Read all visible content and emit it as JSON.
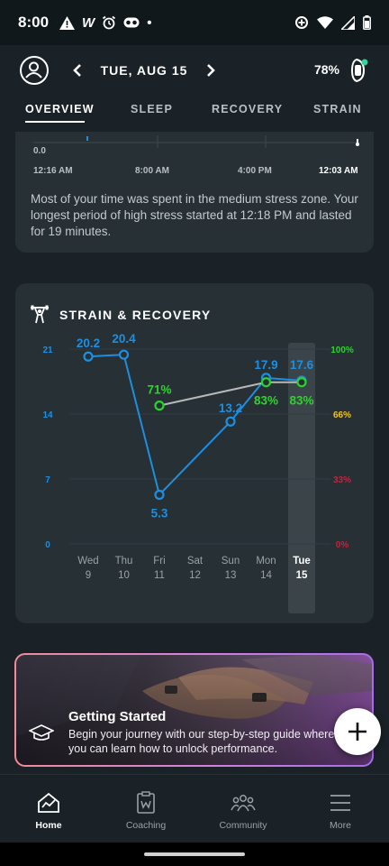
{
  "status_bar": {
    "time": "8:00",
    "left_glyph": "W",
    "dot": "•"
  },
  "header": {
    "date": "TUE, AUG 15",
    "battery_percent": "78%",
    "battery_dot_color": "#34d399"
  },
  "tabs": [
    {
      "label": "OVERVIEW",
      "active": true
    },
    {
      "label": "SLEEP",
      "active": false
    },
    {
      "label": "RECOVERY",
      "active": false
    },
    {
      "label": "STRAIN",
      "active": false
    }
  ],
  "stress_card": {
    "zero_label": "0.0",
    "time_labels": [
      "12:16 AM",
      "8:00 AM",
      "4:00 PM",
      "12:03 AM"
    ],
    "summary": "Most of your time was spent in the medium stress zone. Your longest period of high stress started at 12:18 PM and lasted for 19 minutes."
  },
  "strain_recovery": {
    "title": "STRAIN & RECOVERY",
    "colors": {
      "strain": "#1e8fe0",
      "recovery": "#2dd32d",
      "recovery_line": "#b8b8b8",
      "pct_100": "#2dd32d",
      "pct_66": "#f5c518",
      "pct_33": "#cf1f3a",
      "pct_0": "#cf1f3a"
    }
  },
  "chart_data": {
    "type": "line",
    "categories": [
      "Wed 9",
      "Thu 10",
      "Fri 11",
      "Sat 12",
      "Sun 13",
      "Mon 14",
      "Tue 15"
    ],
    "day_names": [
      "Wed",
      "Thu",
      "Fri",
      "Sat",
      "Sun",
      "Mon",
      "Tue"
    ],
    "day_numbers": [
      "9",
      "10",
      "11",
      "12",
      "13",
      "14",
      "15"
    ],
    "highlight_index": 6,
    "left_axis": {
      "ticks": [
        21,
        14,
        7,
        0
      ],
      "ylim": [
        0,
        21
      ]
    },
    "right_axis": {
      "ticks": [
        "100%",
        "66%",
        "33%",
        "0%"
      ],
      "ylim": [
        0,
        100
      ]
    },
    "series": [
      {
        "values": [
          20.2,
          20.4,
          5.3,
          null,
          13.2,
          17.9,
          17.6
        ]
      },
      {
        "values": [
          null,
          null,
          71,
          null,
          null,
          83,
          83
        ]
      }
    ]
  },
  "banner": {
    "title": "Getting Started",
    "subtitle": "Begin your journey with our step-by-step guide where you can learn how to unlock performance."
  },
  "bottom_nav": [
    {
      "label": "Home",
      "icon": "home-chart-icon",
      "active": true
    },
    {
      "label": "Coaching",
      "icon": "coaching-icon",
      "active": false
    },
    {
      "label": "Community",
      "icon": "community-icon",
      "active": false
    },
    {
      "label": "More",
      "icon": "hamburger-menu-icon",
      "active": false
    }
  ]
}
